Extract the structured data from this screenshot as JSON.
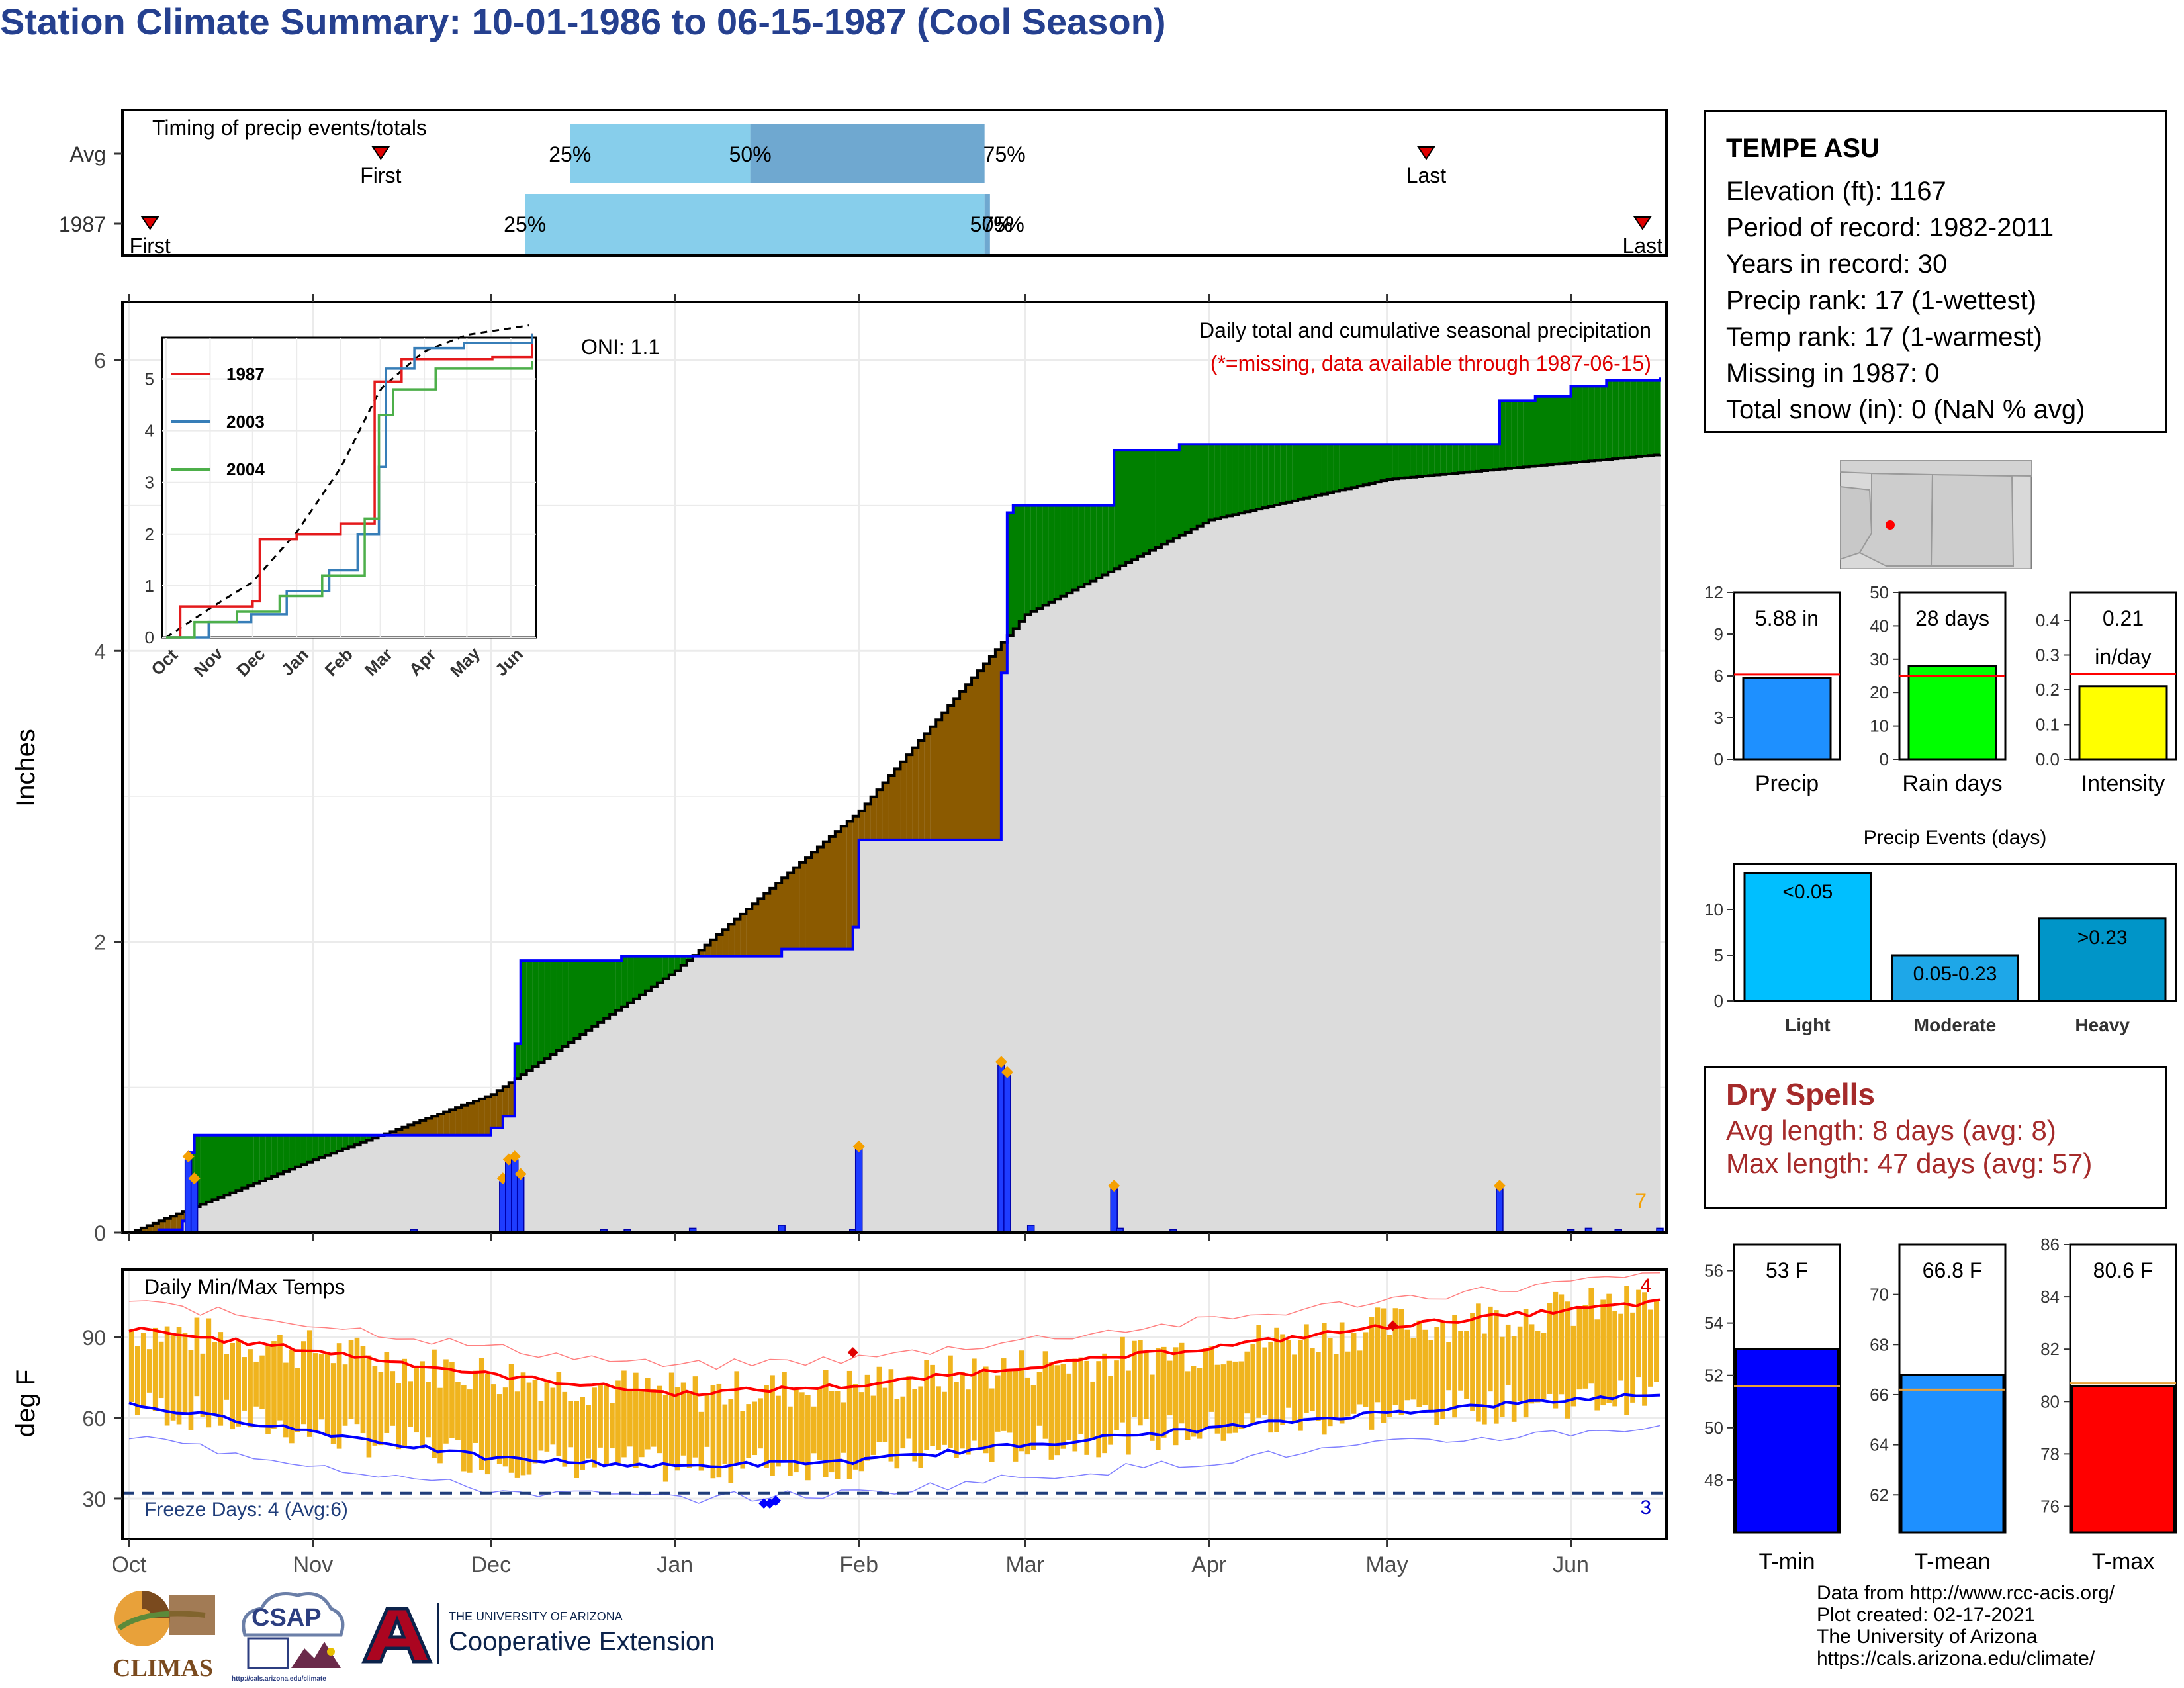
{
  "title": "Station Climate Summary: 10-01-1986 to 06-15-1987 (Cool Season)",
  "timing": {
    "title": "Timing of precip events/totals",
    "rows": [
      "Avg",
      "1987"
    ],
    "first_label": "First",
    "last_label": "Last",
    "avg": {
      "first_month": 1.4,
      "last_month": 7.2,
      "p25": 2.45,
      "p50": 3.45,
      "p75": 4.75
    },
    "y1987": {
      "first_month": 0.12,
      "last_month": 8.4,
      "p25": 2.2,
      "p50": 4.75,
      "p75": 4.78
    },
    "pct_labels": [
      "25%",
      "50%",
      "75%"
    ]
  },
  "main": {
    "ylabel": "Inches",
    "yticks": [
      "0",
      "2",
      "4",
      "6"
    ],
    "caption": "Daily total and cumulative seasonal precipitation",
    "missing_note": "(*=missing, data available through 1987-06-15)",
    "oni": "ONI: 1.1",
    "count_label": "7",
    "month_labels": [
      "Oct",
      "Nov",
      "Dec",
      "Jan",
      "Feb",
      "Mar",
      "Apr",
      "May",
      "Jun"
    ]
  },
  "inset": {
    "yticks": [
      "0",
      "1",
      "2",
      "3",
      "4",
      "5"
    ],
    "xticks": [
      "Oct",
      "Nov",
      "Dec",
      "Jan",
      "Feb",
      "Mar",
      "Apr",
      "May",
      "Jun"
    ],
    "legend": [
      {
        "name": "1987",
        "color": "#e41a1c"
      },
      {
        "name": "2003",
        "color": "#377eb8"
      },
      {
        "name": "2004",
        "color": "#4daf4a"
      }
    ]
  },
  "temps": {
    "title": "Daily Min/Max Temps",
    "ylabel": "deg F",
    "yticks": [
      "30",
      "60",
      "90"
    ],
    "freeze_label": "Freeze Days: 4 (Avg:6)",
    "low_count": "3",
    "high_count": "4"
  },
  "station": {
    "name": "TEMPE ASU",
    "lines": [
      "Elevation (ft): 1167",
      "Period of record: 1982-2011",
      "Years in record: 30",
      "Precip rank: 17 (1-wettest)",
      "Temp rank: 17 (1-warmest)",
      "Missing in 1987: 0",
      "Total snow (in): 0 (NaN % avg)"
    ]
  },
  "mini_bars": [
    {
      "label": "Precip",
      "value_text": "5.88 in",
      "value": 5.88,
      "avg": 6.1,
      "max": 12,
      "ticks": [
        "0",
        "3",
        "6",
        "9",
        "12"
      ],
      "color": "#1e90ff"
    },
    {
      "label": "Rain days",
      "value_text": "28 days",
      "value": 28,
      "avg": 25,
      "max": 50,
      "ticks": [
        "0",
        "10",
        "20",
        "30",
        "40",
        "50"
      ],
      "color": "#00ff00"
    },
    {
      "label": "Intensity",
      "value_text": "0.21",
      "value_text2": "in/day",
      "value": 0.21,
      "avg": 0.245,
      "max": 0.48,
      "ticks": [
        "0.0",
        "0.1",
        "0.2",
        "0.3",
        "0.4"
      ],
      "color": "#ffff00"
    }
  ],
  "events": {
    "title": "Precip Events (days)",
    "ticks": [
      "0",
      "5",
      "10"
    ],
    "bars": [
      {
        "name": "Light",
        "label": "<0.05",
        "value": 14,
        "color": "#00bfff"
      },
      {
        "name": "Moderate",
        "label": "0.05-0.23",
        "value": 5,
        "color": "#1ea7e8"
      },
      {
        "name": "Heavy",
        "label": ">0.23",
        "value": 9,
        "color": "#0095c8"
      }
    ]
  },
  "dry_spells": {
    "title": "Dry Spells",
    "avg_line": "Avg length: 8 days (avg: 8)",
    "max_line": "Max length: 47 days (avg: 57)"
  },
  "temp_bars": [
    {
      "label": "T-min",
      "value_text": "53 F",
      "value": 53,
      "avg": 51.6,
      "min": 46,
      "max": 57,
      "ticks": [
        "48",
        "50",
        "52",
        "54",
        "56"
      ],
      "color": "#0000ff"
    },
    {
      "label": "T-mean",
      "value_text": "66.8 F",
      "value": 66.8,
      "avg": 66.2,
      "min": 60.5,
      "max": 72,
      "ticks": [
        "62",
        "64",
        "66",
        "68",
        "70"
      ],
      "color": "#1e90ff"
    },
    {
      "label": "T-max",
      "value_text": "80.6 F",
      "value": 80.6,
      "avg": 80.7,
      "min": 75,
      "max": 86,
      "ticks": [
        "76",
        "78",
        "80",
        "82",
        "84",
        "86"
      ],
      "color": "#ff0000"
    }
  ],
  "logos": {
    "climas": "CLIMAS",
    "csap": "CSAP",
    "csap_url": "http://cals.arizona.edu/climate",
    "ua_line1": "THE UNIVERSITY OF ARIZONA",
    "ua_line2": "Cooperative Extension"
  },
  "credits": [
    "Data from http://www.rcc-acis.org/",
    "Plot created: 02-17-2021",
    "The University of Arizona",
    "https://cals.arizona.edu/climate/"
  ],
  "chart_data": [
    {
      "type": "area",
      "title": "Daily total and cumulative seasonal precipitation",
      "ylabel": "Inches",
      "ylim": [
        0,
        6.4
      ],
      "series": [
        {
          "name": "1987",
          "x": [
            "Oct 1",
            "Oct 11",
            "Nov 12",
            "Dec 5",
            "Dec 6",
            "Jan 31",
            "Feb 24",
            "Mar 14",
            "May 10",
            "May 25",
            "Jun 15"
          ],
          "values": [
            0,
            0.67,
            0.67,
            0.72,
            1.87,
            2.7,
            4.95,
            5.42,
            5.75,
            5.86,
            5.88
          ]
        },
        {
          "name": "average",
          "x": [
            "Oct 1",
            "Nov 1",
            "Dec 1",
            "Jan 1",
            "Feb 1",
            "Mar 1",
            "Apr 1",
            "May 1",
            "Jun 15"
          ],
          "values": [
            0,
            0.5,
            0.95,
            1.8,
            2.9,
            4.25,
            4.9,
            5.18,
            5.35
          ]
        }
      ],
      "daily_events": [
        {
          "date": "Oct 11",
          "value": 0.5
        },
        {
          "date": "Dec 5",
          "value": 0.5
        },
        {
          "date": "Jan 31",
          "value": 0.57
        },
        {
          "date": "Feb 24",
          "value": 1.15
        },
        {
          "date": "Feb 25",
          "value": 1.08
        },
        {
          "date": "May 10",
          "value": 0.3
        },
        {
          "date": "Mar 14",
          "value": 0.3
        }
      ]
    },
    {
      "type": "line",
      "title": "Daily Min/Max Temps",
      "ylabel": "deg F",
      "ylim": [
        15,
        115
      ],
      "series": [
        {
          "name": "avg max",
          "x": [
            "Oct",
            "Nov",
            "Dec",
            "Jan",
            "Feb",
            "Mar",
            "Apr",
            "May",
            "Jun"
          ],
          "values": [
            93,
            85,
            76,
            69,
            72,
            79,
            86,
            94,
            103
          ]
        },
        {
          "name": "avg min",
          "x": [
            "Oct",
            "Nov",
            "Dec",
            "Jan",
            "Feb",
            "Mar",
            "Apr",
            "May",
            "Jun"
          ],
          "values": [
            65,
            55,
            45,
            42,
            44,
            50,
            56,
            62,
            69
          ]
        }
      ],
      "freeze_line": 32
    }
  ]
}
